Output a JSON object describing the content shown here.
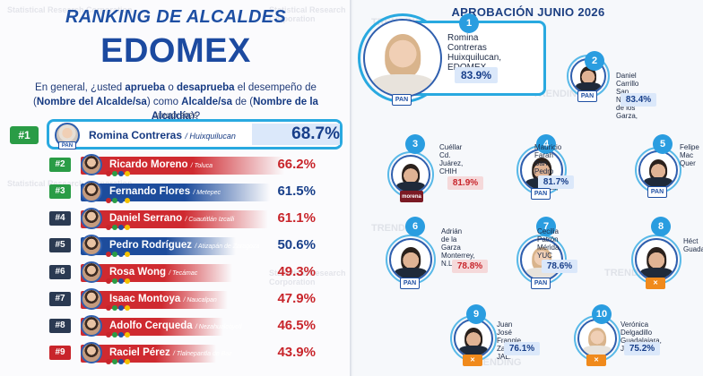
{
  "left": {
    "title": "RANKING DE ALCALDES",
    "subtitle": "EDOMEX",
    "question_part1": "En general, ¿usted ",
    "question_bold1": "aprueba",
    "question_part2": " o ",
    "question_bold2": "desaprueba",
    "question_part3": " el desempeño de (",
    "question_bold3": "Nombre del Alcalde/sa",
    "question_part4": ") como ",
    "question_bold4": "Alcalde/sa",
    "question_part5": " de (",
    "question_bold5": "Nombre de la Alcaldía",
    "question_part6": ")?",
    "date": "JUNIO 2026",
    "top": {
      "rank": "#1",
      "name": "Romina Contreras",
      "place": "/ Huixquilucan",
      "pct": "68.7%",
      "party": "PAN"
    },
    "rows": [
      {
        "rank": "#2",
        "rank_color": "green",
        "name": "Ricardo Moreno",
        "place": "/ Toluca",
        "pct": "66.2%",
        "bar_color": "red"
      },
      {
        "rank": "#3",
        "rank_color": "green",
        "name": "Fernando Flores",
        "place": "/ Metepec",
        "pct": "61.5%",
        "bar_color": "blue"
      },
      {
        "rank": "#4",
        "rank_color": "dark",
        "name": "Daniel Serrano",
        "place": "/ Cuautitlán Izcalli",
        "pct": "61.1%",
        "bar_color": "red"
      },
      {
        "rank": "#5",
        "rank_color": "dark",
        "name": "Pedro Rodríguez",
        "place": "/ Atizapán de Zaragoza",
        "pct": "50.6%",
        "bar_color": "blue"
      },
      {
        "rank": "#6",
        "rank_color": "dark",
        "name": "Rosa Wong",
        "place": "/ Tecámac",
        "pct": "49.3%",
        "bar_color": "red"
      },
      {
        "rank": "#7",
        "rank_color": "dark",
        "name": "Isaac Montoya",
        "place": "/ Naucalpan",
        "pct": "47.9%",
        "bar_color": "red"
      },
      {
        "rank": "#8",
        "rank_color": "dark",
        "name": "Adolfo Cerqueda",
        "place": "/ Nezahualcóyotl",
        "pct": "46.5%",
        "bar_color": "red"
      },
      {
        "rank": "#9",
        "rank_color": "red",
        "name": "Raciel Pérez",
        "place": "/ Tlalnepantla de Baz",
        "pct": "43.9%",
        "bar_color": "red"
      }
    ],
    "watermark": "Statistical Research Corporation"
  },
  "right": {
    "title": "APROBACIÓN JUNIO 2026",
    "watermark": "TRENDING",
    "cards": [
      {
        "num": "1",
        "name": "Romina Contreras",
        "place1": "Huixquilucan,",
        "place2": "EDOMEX",
        "pct": "83.9%",
        "party": "PAN",
        "pct_color": "blue"
      },
      {
        "num": "2",
        "name": "Daniel Carrillo",
        "place1": "San Nicolás de los Garza,",
        "place2": "",
        "pct": "83.4%",
        "party": "PAN",
        "pct_color": "blue"
      },
      {
        "num": "3",
        "name": "Cruz Pérez Cuéllar",
        "name_visible": "Cuéllar",
        "place1": "Cd. Juárez, CHIH",
        "place2": "",
        "pct": "81.9%",
        "party": "morena",
        "pct_color": "red"
      },
      {
        "num": "4",
        "name": "Mauricio Farah",
        "place1": "San Pedro",
        "place2": "Garza García, N.L.",
        "pct": "81.7%",
        "party": "PAN",
        "pct_color": "blue"
      },
      {
        "num": "5",
        "name": "Felipe",
        "name2": "Mac",
        "place1": "Quer",
        "place2": "",
        "pct": "",
        "party": "PAN",
        "pct_color": "blue"
      },
      {
        "num": "6",
        "name": "Adrián",
        "name2": "de la Garza",
        "place1": "Monterrey, N.L.",
        "place2": "",
        "pct": "78.8%",
        "party": "PAN",
        "pct_color": "red"
      },
      {
        "num": "7",
        "name": "Cecilia Patrón",
        "place1": "Mérida, YUC",
        "place2": "",
        "pct": "78.6%",
        "party": "PAN",
        "pct_color": "blue"
      },
      {
        "num": "8",
        "name": "Héct",
        "place1": "Guada",
        "place2": "",
        "pct": "",
        "party": "MC",
        "pct_color": "blue"
      },
      {
        "num": "9",
        "name": "Juan José Frangie",
        "place1": "Zapopan, JAL.",
        "place2": "",
        "pct": "76.1%",
        "party": "MC",
        "pct_color": "blue"
      },
      {
        "num": "10",
        "name": "Verónica Delgadillo",
        "place1": "Guadalajara, JAL.",
        "place2": "",
        "pct": "75.2%",
        "party": "MC",
        "pct_color": "blue"
      }
    ]
  },
  "colors": {
    "brand_blue": "#1e4fa3",
    "accent_cyan": "#29a9e0",
    "red": "#c8252b",
    "green": "#2a9c46"
  }
}
